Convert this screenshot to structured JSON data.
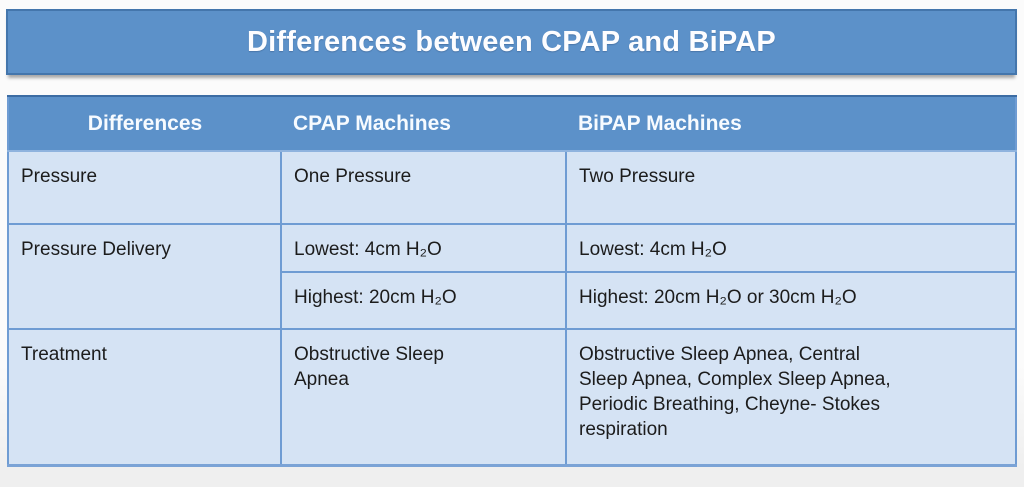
{
  "title": "Differences between CPAP and BiPAP",
  "colors": {
    "banner_bg": "#5c91c9",
    "banner_border": "#4476ac",
    "header_bg": "#5c91c9",
    "header_text": "#f7fbff",
    "cell_bg": "#d5e3f4",
    "cell_border": "#6f9cd3",
    "body_text": "#1c1c1c",
    "page_bg": "#fbfbfb"
  },
  "table": {
    "headers": [
      "Differences",
      "CPAP Machines",
      "BiPAP Machines"
    ],
    "rows": {
      "pressure": {
        "label": "Pressure",
        "cpap": "One Pressure",
        "bipap": "Two Pressure"
      },
      "pressure_delivery": {
        "label": "Pressure Delivery",
        "lowest": {
          "cpap": "Lowest: 4cm H₂O",
          "bipap": "Lowest: 4cm H₂O"
        },
        "highest": {
          "cpap": "Highest: 20cm H₂O",
          "bipap": "Highest: 20cm H₂O or 30cm H₂O"
        }
      },
      "treatment": {
        "label": "Treatment",
        "cpap": "Obstructive Sleep Apnea",
        "bipap": "Obstructive Sleep Apnea, Central Sleep Apnea, Complex Sleep Apnea, Periodic Breathing, Cheyne- Stokes respiration"
      }
    }
  },
  "chart_data": {
    "type": "table",
    "title": "Differences between CPAP and BiPAP",
    "columns": [
      "Differences",
      "CPAP Machines",
      "BiPAP Machines"
    ],
    "rows": [
      [
        "Pressure",
        "One Pressure",
        "Two Pressure"
      ],
      [
        "Pressure Delivery",
        "Lowest: 4cm H₂O",
        "Lowest: 4cm H₂O"
      ],
      [
        "Pressure Delivery",
        "Highest: 20cm H₂O",
        "Highest: 20cm H₂O or 30cm H₂O"
      ],
      [
        "Treatment",
        "Obstructive Sleep Apnea",
        "Obstructive Sleep Apnea, Central Sleep Apnea, Complex Sleep Apnea, Periodic Breathing, Cheyne- Stokes respiration"
      ]
    ]
  }
}
